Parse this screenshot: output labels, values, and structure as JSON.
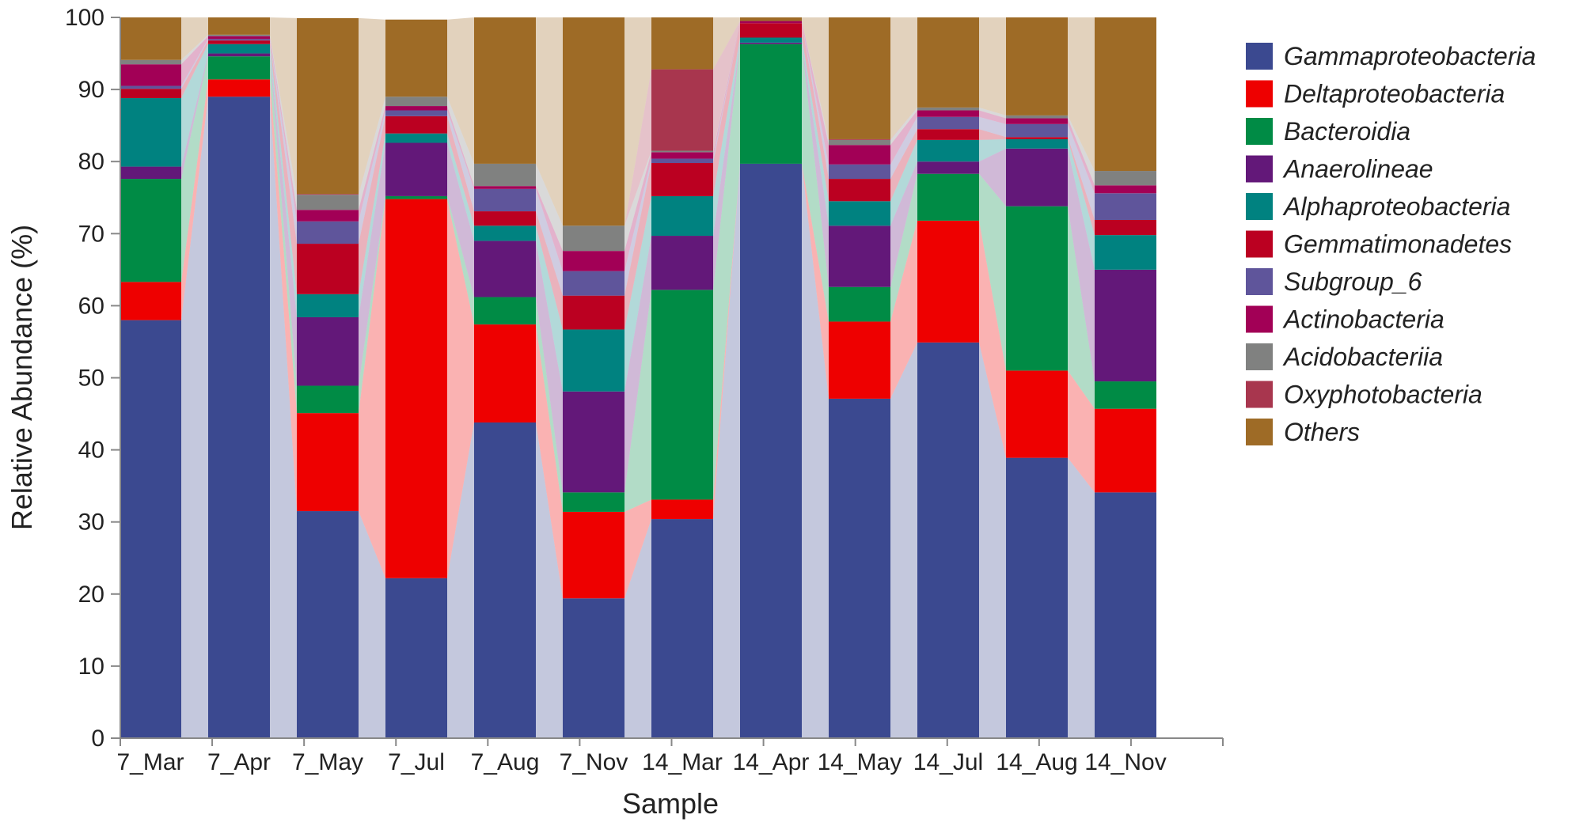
{
  "chart_data": {
    "type": "bar",
    "stacked": true,
    "title": "",
    "xlabel": "Sample",
    "ylabel": "Relative Abundance (%)",
    "ylim": [
      0,
      100
    ],
    "yticks": [
      0,
      10,
      20,
      30,
      40,
      50,
      60,
      70,
      80,
      90,
      100
    ],
    "categories": [
      "7_Mar",
      "7_Apr",
      "7_May",
      "7_Jul",
      "7_Aug",
      "7_Nov",
      "14_Mar",
      "14_Apr",
      "14_May",
      "14_Jul",
      "14_Aug",
      "14_Nov"
    ],
    "series": [
      {
        "name": "Gammaproteobacteria",
        "color": "#3b4990",
        "values": [
          58.0,
          89.0,
          31.5,
          22.2,
          43.8,
          19.4,
          30.4,
          79.7,
          47.1,
          54.9,
          38.9,
          34.1
        ]
      },
      {
        "name": "Deltaproteobacteria",
        "color": "#ee0000",
        "values": [
          5.3,
          2.4,
          13.6,
          52.6,
          13.6,
          12.0,
          2.7,
          0.0,
          10.7,
          16.9,
          12.1,
          11.6
        ]
      },
      {
        "name": "Bacteroidia",
        "color": "#008b45",
        "values": [
          14.3,
          3.2,
          3.8,
          0.4,
          3.8,
          2.7,
          29.1,
          16.6,
          4.8,
          6.5,
          22.8,
          3.8
        ]
      },
      {
        "name": "Anaerolineae",
        "color": "#631879",
        "values": [
          1.7,
          0.4,
          9.5,
          7.4,
          7.8,
          14.0,
          7.5,
          0.2,
          8.5,
          1.7,
          8.0,
          15.5
        ]
      },
      {
        "name": "Alphaproteobacteria",
        "color": "#008280",
        "values": [
          9.5,
          1.3,
          3.2,
          1.3,
          2.1,
          8.6,
          5.5,
          0.7,
          3.4,
          3.0,
          1.3,
          4.8
        ]
      },
      {
        "name": "Gemmatimonadetes",
        "color": "#bb0021",
        "values": [
          1.3,
          0.5,
          7.0,
          2.4,
          2.0,
          4.7,
          4.6,
          2.0,
          3.1,
          1.5,
          0.3,
          2.1
        ]
      },
      {
        "name": "Subgroup_6",
        "color": "#5f559b",
        "values": [
          0.4,
          0.2,
          3.1,
          0.8,
          3.1,
          3.4,
          0.6,
          0.0,
          2.0,
          1.7,
          1.8,
          3.7
        ]
      },
      {
        "name": "Actinobacteria",
        "color": "#a20056",
        "values": [
          3.0,
          0.4,
          1.6,
          0.6,
          0.4,
          2.8,
          0.9,
          0.3,
          2.7,
          0.9,
          0.8,
          1.1
        ]
      },
      {
        "name": "Acidobacteriia",
        "color": "#808180",
        "values": [
          0.6,
          0.2,
          2.1,
          1.3,
          3.1,
          3.5,
          0.2,
          0.0,
          0.7,
          0.4,
          0.4,
          2.0
        ]
      },
      {
        "name": "Oxyphotobacteria",
        "color": "#a8364e",
        "values": [
          0.0,
          0.0,
          0.1,
          0.0,
          0.0,
          0.0,
          11.3,
          0.0,
          0.1,
          0.0,
          0.0,
          0.0
        ]
      },
      {
        "name": "Others",
        "color": "#9e6b26",
        "values": [
          5.9,
          2.4,
          24.4,
          10.7,
          20.3,
          28.9,
          7.2,
          0.5,
          16.9,
          12.5,
          13.6,
          21.3
        ]
      }
    ],
    "legend_position": "right"
  }
}
